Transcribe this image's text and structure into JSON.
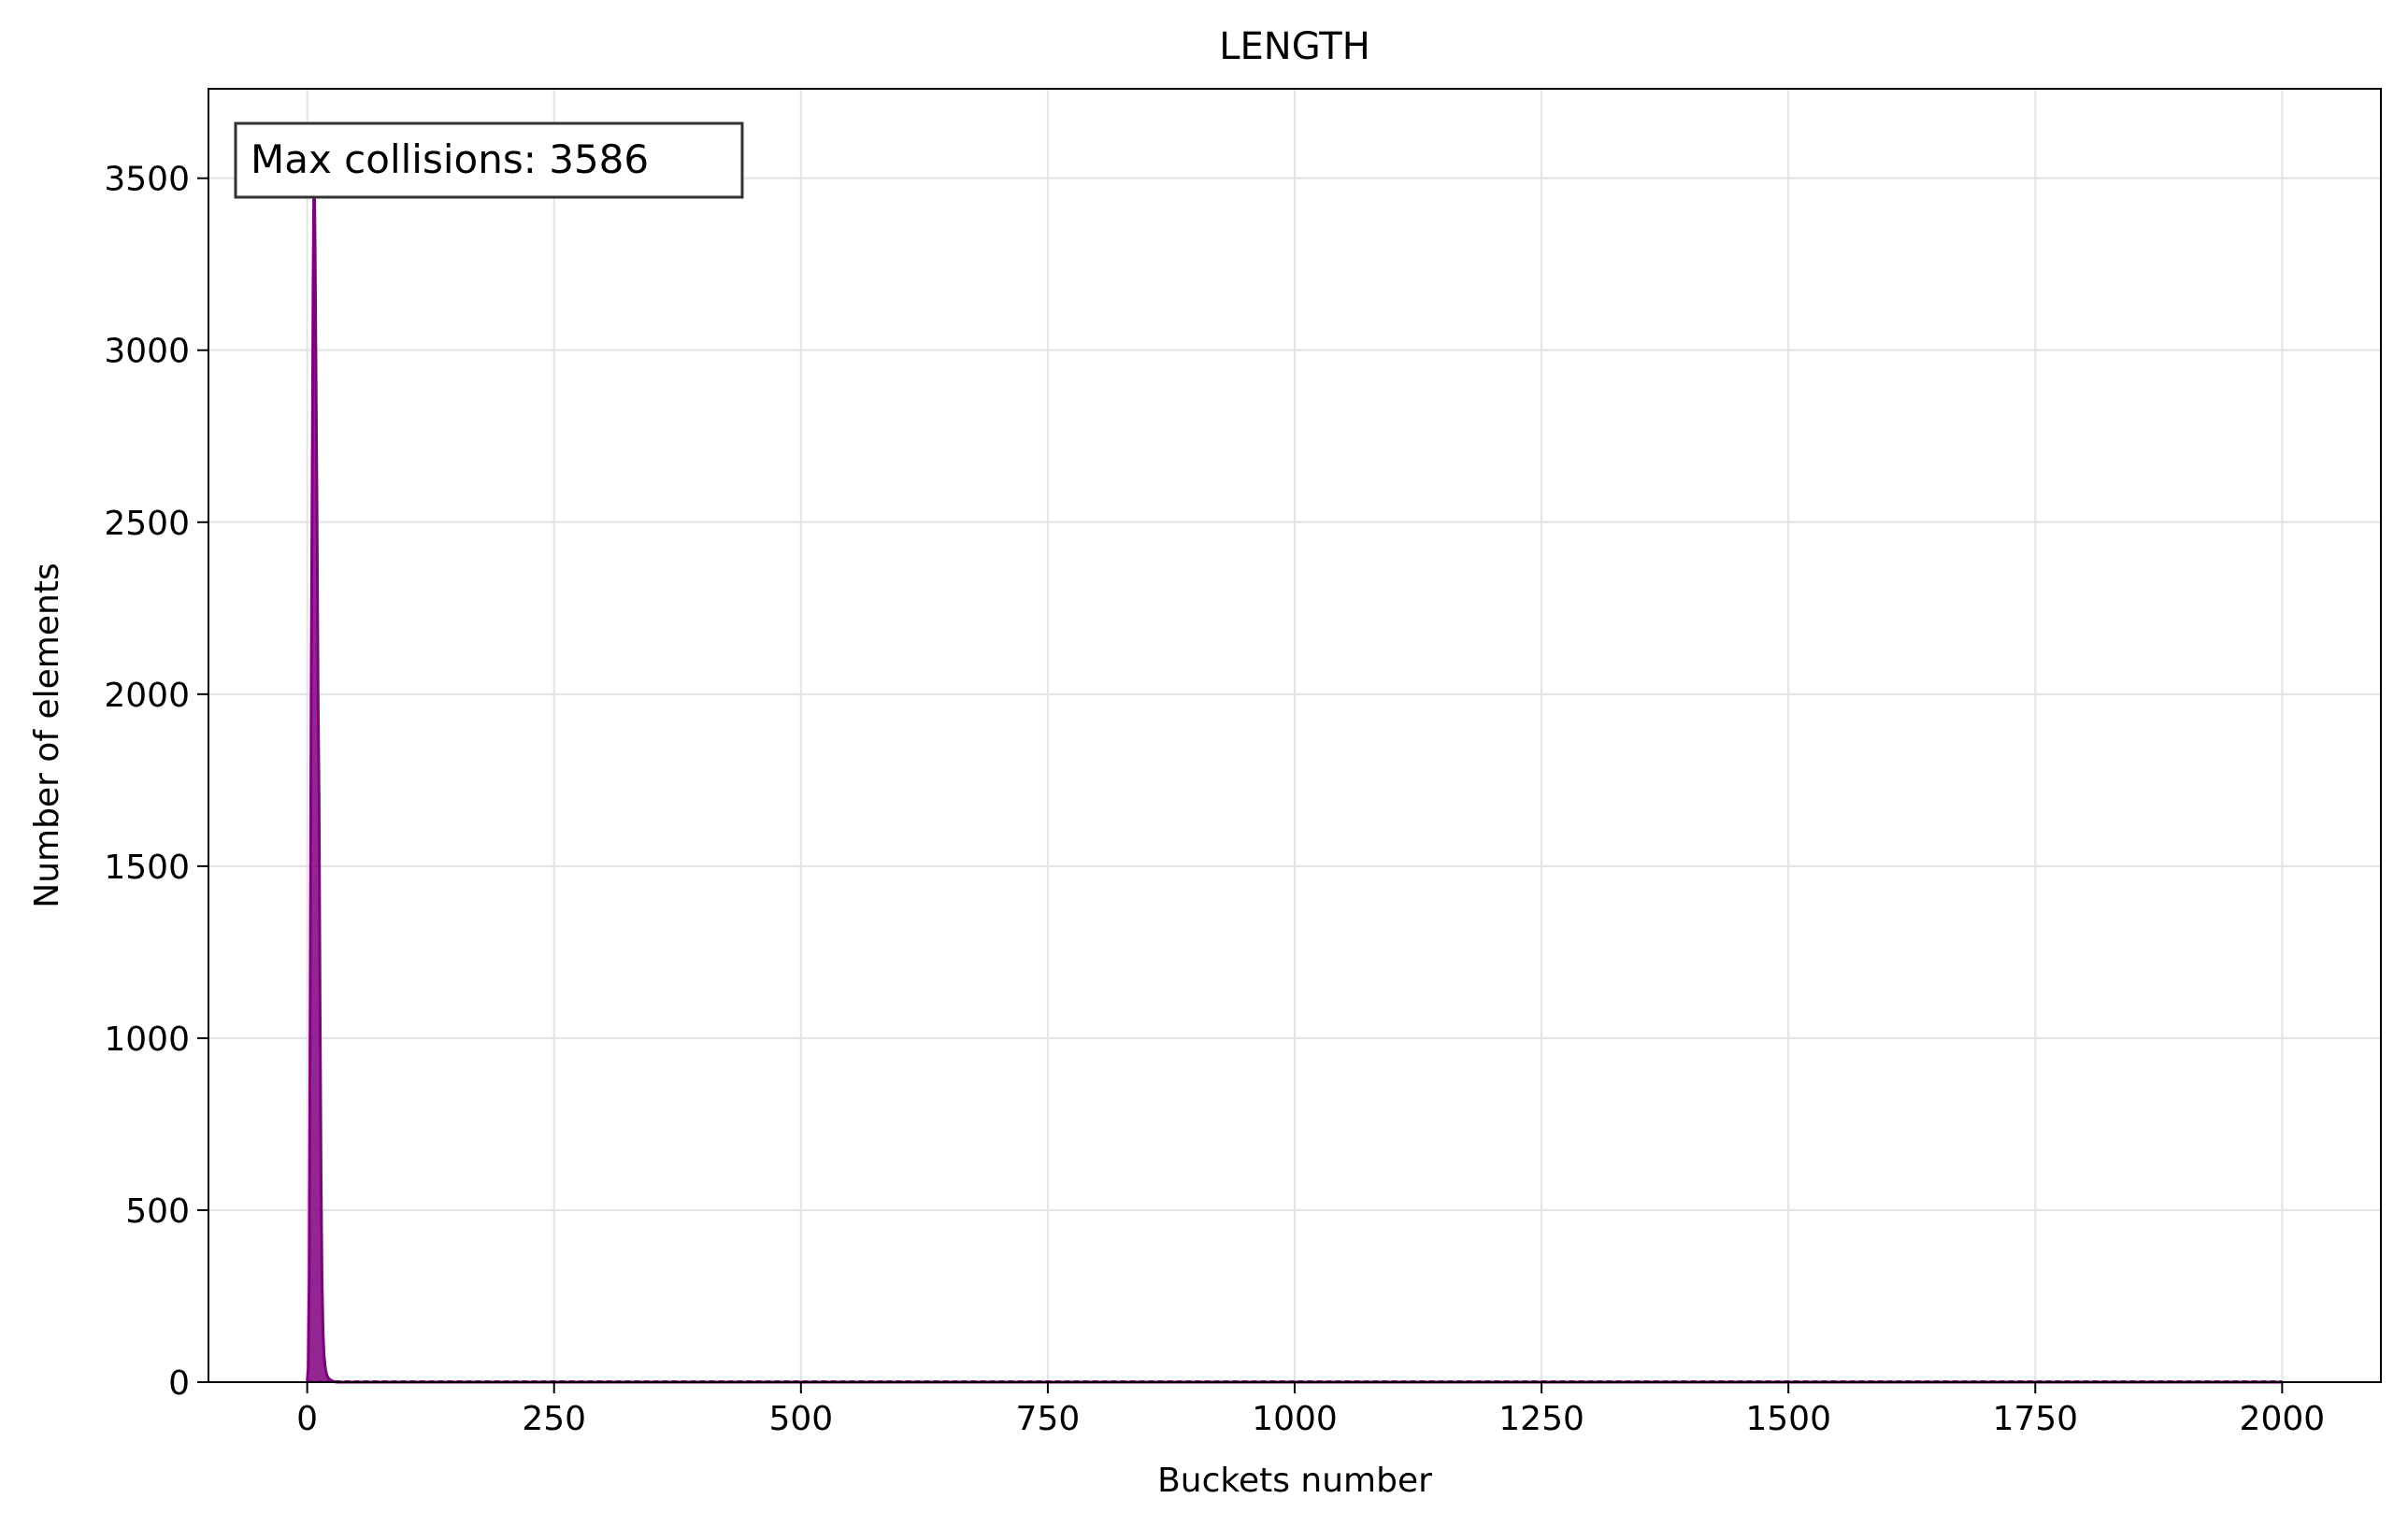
{
  "chart_data": {
    "type": "area",
    "title": "LENGTH",
    "xlabel": "Buckets number",
    "ylabel": "Number of elements",
    "xlim": [
      -100,
      2100
    ],
    "ylim": [
      0,
      3760
    ],
    "x_ticks": [
      0,
      250,
      500,
      750,
      1000,
      1250,
      1500,
      1750,
      2000
    ],
    "y_ticks": [
      0,
      500,
      1000,
      1500,
      2000,
      2500,
      3000,
      3500
    ],
    "grid": true,
    "color": "#800080",
    "annotation": "Max collisions: 3586",
    "annotation_position": "top-left",
    "bucket_count": 2000,
    "series": [
      {
        "x": [
          0,
          1,
          2,
          3,
          4,
          5,
          6,
          7,
          8,
          9,
          10,
          11,
          12,
          13,
          14,
          15,
          16,
          17,
          18,
          19,
          20,
          21,
          22,
          23,
          24,
          25,
          26,
          27,
          28,
          30,
          2000
        ],
        "values": [
          2,
          40,
          300,
          1100,
          2000,
          2600,
          3200,
          3586,
          3300,
          2900,
          2500,
          2000,
          1700,
          1100,
          600,
          300,
          150,
          80,
          50,
          30,
          20,
          14,
          10,
          8,
          6,
          4,
          3,
          2,
          1,
          0,
          0
        ]
      }
    ]
  }
}
